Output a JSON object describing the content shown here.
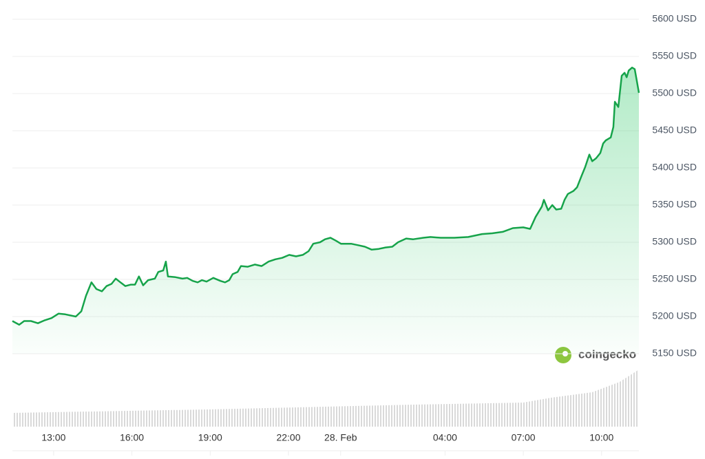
{
  "chart_data": {
    "type": "line",
    "watermark": "coingecko",
    "color": "#16a34a",
    "grid": true,
    "x": [
      11.42,
      11.68,
      11.87,
      12.13,
      12.4,
      12.66,
      12.92,
      13.19,
      13.45,
      13.85,
      14.06,
      14.24,
      14.45,
      14.64,
      14.85,
      15.03,
      15.22,
      15.38,
      15.56,
      15.75,
      15.96,
      16.12,
      16.27,
      16.43,
      16.62,
      16.88,
      17.01,
      17.2,
      17.3,
      17.38,
      17.67,
      17.94,
      18.12,
      18.33,
      18.52,
      18.68,
      18.86,
      19.12,
      19.39,
      19.57,
      19.73,
      19.86,
      20.05,
      20.18,
      20.44,
      20.71,
      20.97,
      21.24,
      21.5,
      21.76,
      22.03,
      22.29,
      22.55,
      22.77,
      22.95,
      23.21,
      23.4,
      23.61,
      23.82,
      24.01,
      24.4,
      24.67,
      24.93,
      25.19,
      25.46,
      25.72,
      25.98,
      26.2,
      26.51,
      26.78,
      27.17,
      27.44,
      27.83,
      28.36,
      28.89,
      29.42,
      29.81,
      30.21,
      30.6,
      31.0,
      31.26,
      31.47,
      31.71,
      31.79,
      31.95,
      32.11,
      32.26,
      32.45,
      32.58,
      32.71,
      32.92,
      33.06,
      33.24,
      33.37,
      33.53,
      33.64,
      33.79,
      33.95,
      34.06,
      34.16,
      34.35,
      34.45,
      34.51,
      34.64,
      34.77,
      34.88,
      34.96,
      35.04,
      35.17,
      35.27,
      35.35,
      35.43
    ],
    "values": [
      5194,
      5189,
      5194,
      5194,
      5191,
      5195,
      5198,
      5204,
      5203,
      5200,
      5207,
      5228,
      5246,
      5237,
      5234,
      5241,
      5244,
      5251,
      5246,
      5241,
      5243,
      5243,
      5254,
      5242,
      5249,
      5251,
      5260,
      5262,
      5274,
      5254,
      5253,
      5251,
      5252,
      5248,
      5246,
      5249,
      5247,
      5252,
      5248,
      5246,
      5249,
      5257,
      5260,
      5268,
      5267,
      5270,
      5268,
      5274,
      5277,
      5279,
      5283,
      5281,
      5283,
      5288,
      5298,
      5300,
      5304,
      5306,
      5302,
      5298,
      5298,
      5296,
      5294,
      5290,
      5291,
      5293,
      5294,
      5300,
      5305,
      5304,
      5306,
      5307,
      5306,
      5306,
      5307,
      5311,
      5312,
      5314,
      5319,
      5320,
      5318,
      5334,
      5348,
      5357,
      5343,
      5350,
      5344,
      5345,
      5357,
      5365,
      5369,
      5374,
      5390,
      5401,
      5418,
      5409,
      5413,
      5420,
      5433,
      5437,
      5441,
      5455,
      5489,
      5482,
      5524,
      5528,
      5522,
      5531,
      5535,
      5533,
      5517,
      5501
    ],
    "xlim": [
      11.42,
      35.43
    ],
    "xticks": [
      {
        "value": 13,
        "label": "13:00"
      },
      {
        "value": 16,
        "label": "16:00"
      },
      {
        "value": 19,
        "label": "19:00"
      },
      {
        "value": 22,
        "label": "22:00"
      },
      {
        "value": 24,
        "label": "28. Feb"
      },
      {
        "value": 28,
        "label": "04:00"
      },
      {
        "value": 31,
        "label": "07:00"
      },
      {
        "value": 34,
        "label": "10:00"
      }
    ],
    "ylim": [
      5150,
      5600
    ],
    "yticks": [
      {
        "value": 5150,
        "label": "5150 USD"
      },
      {
        "value": 5200,
        "label": "5200 USD"
      },
      {
        "value": 5250,
        "label": "5250 USD"
      },
      {
        "value": 5300,
        "label": "5300 USD"
      },
      {
        "value": 5350,
        "label": "5350 USD"
      },
      {
        "value": 5400,
        "label": "5400 USD"
      },
      {
        "value": 5450,
        "label": "5450 USD"
      },
      {
        "value": 5500,
        "label": "5500 USD"
      },
      {
        "value": 5550,
        "label": "5550 USD"
      },
      {
        "value": 5600,
        "label": "5600 USD"
      }
    ]
  }
}
